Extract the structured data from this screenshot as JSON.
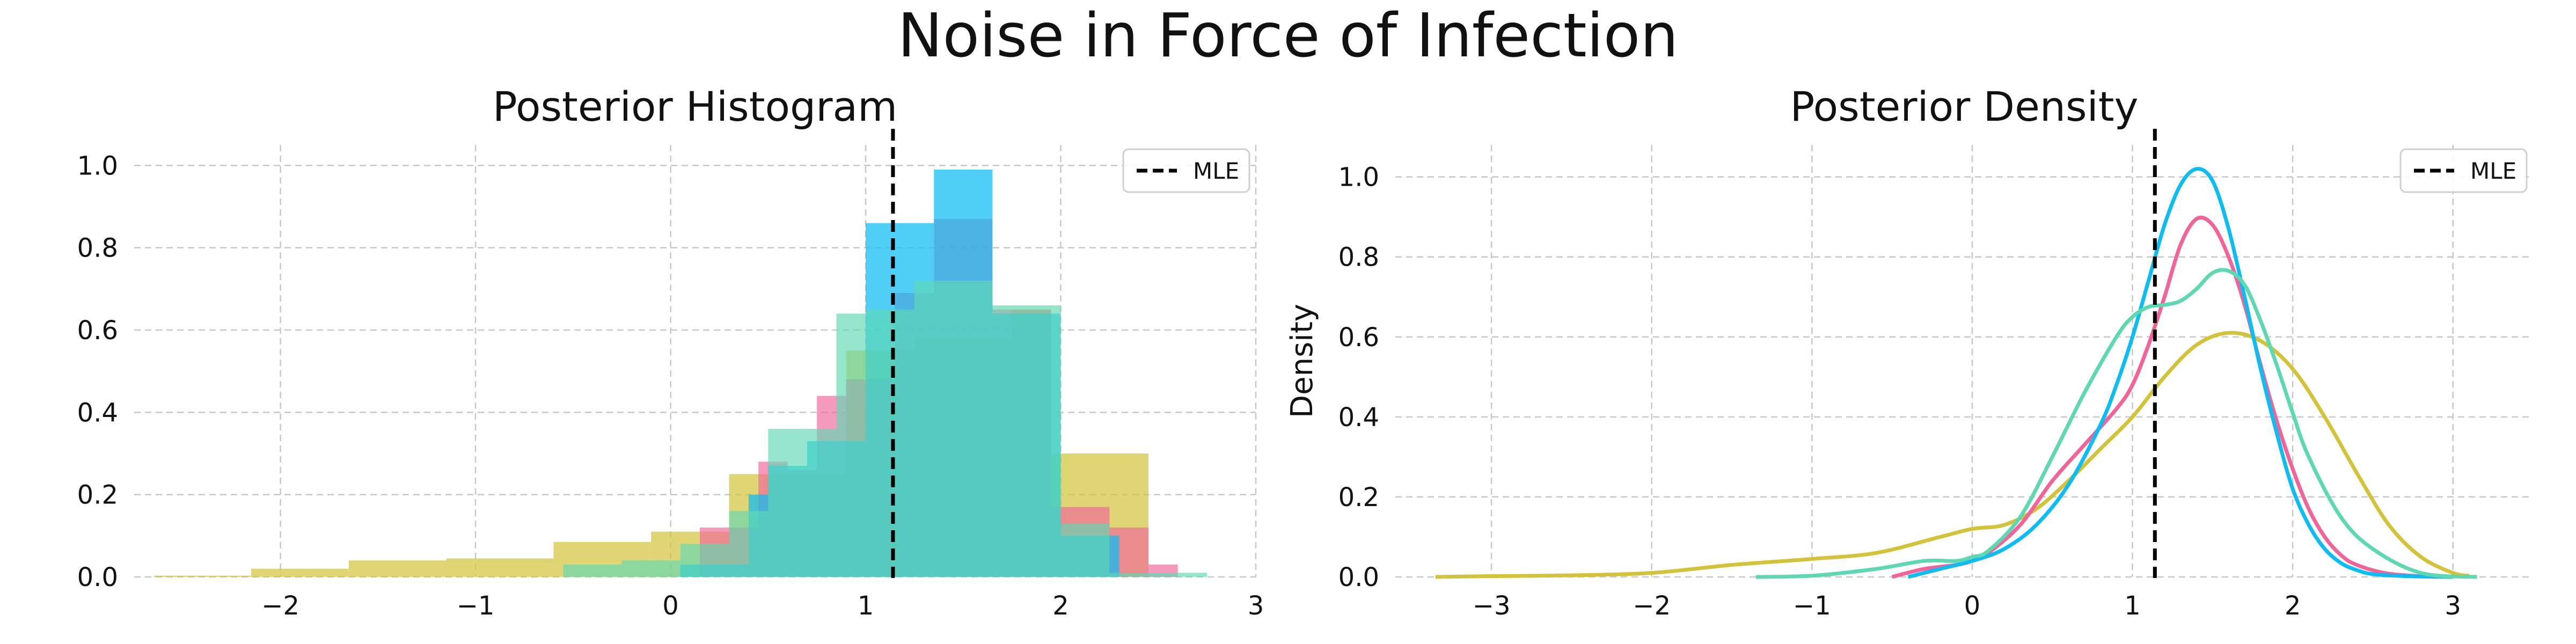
{
  "figure": {
    "title": "Noise in Force of Infection"
  },
  "colors": {
    "blue": "#0cbcf2",
    "pink": "#f0649a",
    "teal": "#5ed8b2",
    "olive": "#d2c33a",
    "grid": "#c8c8c8",
    "mle": "#000000"
  },
  "chart_data": [
    {
      "type": "bar",
      "title": "Posterior Histogram",
      "xlabel": "",
      "ylabel": "",
      "xlim": [
        -2.75,
        3.0
      ],
      "ylim": [
        0,
        1.05
      ],
      "xticks": [
        -2,
        -1,
        0,
        1,
        2,
        3
      ],
      "xtick_labels": [
        "−2",
        "−1",
        "0",
        "1",
        "2",
        "3"
      ],
      "yticks": [
        0.0,
        0.2,
        0.4,
        0.6,
        0.8,
        1.0
      ],
      "ytick_labels": [
        "0.0",
        "0.2",
        "0.4",
        "0.6",
        "0.8",
        "1.0"
      ],
      "grid": true,
      "legend": {
        "entries": [
          "MLE"
        ],
        "placement": "top-right"
      },
      "mle": 1.14,
      "series": [
        {
          "color": "olive",
          "opacity": 0.7,
          "bins": [
            [
              -2.65,
              -2.15,
              0.003
            ],
            [
              -2.15,
              -1.65,
              0.02
            ],
            [
              -1.65,
              -1.15,
              0.04
            ],
            [
              -1.15,
              -0.6,
              0.045
            ],
            [
              -0.6,
              -0.1,
              0.085
            ],
            [
              -0.1,
              0.3,
              0.11
            ],
            [
              0.3,
              0.45,
              0.25
            ],
            [
              0.45,
              0.9,
              0.25
            ],
            [
              0.9,
              1.25,
              0.55
            ],
            [
              1.25,
              1.75,
              0.58
            ],
            [
              1.75,
              1.95,
              0.65
            ],
            [
              1.95,
              2.45,
              0.3
            ]
          ]
        },
        {
          "color": "pink",
          "opacity": 0.65,
          "bins": [
            [
              0.15,
              0.45,
              0.12
            ],
            [
              0.45,
              0.6,
              0.28
            ],
            [
              0.6,
              0.75,
              0.26
            ],
            [
              0.75,
              0.9,
              0.44
            ],
            [
              0.9,
              1.15,
              0.48
            ],
            [
              1.15,
              1.35,
              0.69
            ],
            [
              1.35,
              1.65,
              0.87
            ],
            [
              1.65,
              1.95,
              0.65
            ],
            [
              1.95,
              2.25,
              0.17
            ],
            [
              2.25,
              2.45,
              0.12
            ],
            [
              2.45,
              2.6,
              0.03
            ]
          ]
        },
        {
          "color": "blue",
          "opacity": 0.72,
          "bins": [
            [
              0.05,
              0.4,
              0.03
            ],
            [
              0.4,
              0.5,
              0.2
            ],
            [
              0.5,
              0.7,
              0.27
            ],
            [
              0.7,
              1.0,
              0.33
            ],
            [
              1.0,
              1.35,
              0.86
            ],
            [
              1.35,
              1.65,
              0.99
            ],
            [
              1.65,
              2.0,
              0.64
            ],
            [
              2.0,
              2.3,
              0.1
            ]
          ]
        },
        {
          "color": "teal",
          "opacity": 0.65,
          "bins": [
            [
              -0.55,
              -0.25,
              0.03
            ],
            [
              -0.25,
              0.05,
              0.04
            ],
            [
              0.05,
              0.3,
              0.08
            ],
            [
              0.3,
              0.5,
              0.16
            ],
            [
              0.5,
              0.85,
              0.36
            ],
            [
              0.85,
              1.0,
              0.64
            ],
            [
              1.0,
              1.25,
              0.65
            ],
            [
              1.25,
              1.65,
              0.72
            ],
            [
              1.65,
              2.0,
              0.66
            ],
            [
              2.0,
              2.25,
              0.13
            ],
            [
              2.25,
              2.75,
              0.01
            ]
          ]
        }
      ]
    },
    {
      "type": "line",
      "title": "Posterior Density",
      "xlabel": "",
      "ylabel": "Density",
      "xlim": [
        -3.6,
        3.5
      ],
      "ylim": [
        0,
        1.08
      ],
      "xticks": [
        -3,
        -2,
        -1,
        0,
        1,
        2,
        3
      ],
      "xtick_labels": [
        "−3",
        "−2",
        "−1",
        "0",
        "1",
        "2",
        "3"
      ],
      "yticks": [
        0.0,
        0.2,
        0.4,
        0.6,
        0.8,
        1.0
      ],
      "ytick_labels": [
        "0.0",
        "0.2",
        "0.4",
        "0.6",
        "0.8",
        "1.0"
      ],
      "grid": true,
      "legend": {
        "entries": [
          "MLE"
        ],
        "placement": "top-right"
      },
      "mle": 1.14,
      "series": [
        {
          "color": "olive",
          "x": [
            -3.35,
            -3.0,
            -2.5,
            -2.0,
            -1.5,
            -1.0,
            -0.6,
            -0.2,
            0.0,
            0.2,
            0.4,
            0.6,
            0.8,
            1.0,
            1.2,
            1.4,
            1.6,
            1.8,
            2.0,
            2.2,
            2.4,
            2.6,
            2.8,
            3.0,
            3.1
          ],
          "y": [
            0.0,
            0.002,
            0.004,
            0.01,
            0.03,
            0.045,
            0.06,
            0.1,
            0.12,
            0.13,
            0.17,
            0.24,
            0.32,
            0.4,
            0.5,
            0.58,
            0.61,
            0.59,
            0.52,
            0.4,
            0.26,
            0.13,
            0.05,
            0.01,
            0.003
          ]
        },
        {
          "color": "pink",
          "x": [
            -0.5,
            -0.3,
            -0.1,
            0.0,
            0.1,
            0.3,
            0.5,
            0.7,
            0.9,
            1.0,
            1.1,
            1.2,
            1.3,
            1.4,
            1.5,
            1.6,
            1.7,
            1.8,
            1.9,
            2.0,
            2.1,
            2.2,
            2.3,
            2.4,
            2.6,
            2.9
          ],
          "y": [
            0.0,
            0.02,
            0.03,
            0.04,
            0.06,
            0.13,
            0.24,
            0.33,
            0.42,
            0.48,
            0.58,
            0.7,
            0.83,
            0.895,
            0.88,
            0.8,
            0.68,
            0.53,
            0.39,
            0.27,
            0.17,
            0.1,
            0.055,
            0.03,
            0.008,
            0.0
          ]
        },
        {
          "color": "blue",
          "x": [
            -0.4,
            -0.2,
            0.0,
            0.2,
            0.4,
            0.6,
            0.8,
            0.9,
            1.0,
            1.1,
            1.2,
            1.3,
            1.4,
            1.5,
            1.6,
            1.7,
            1.8,
            1.9,
            2.0,
            2.1,
            2.2,
            2.3,
            2.4,
            2.5,
            2.7,
            3.0
          ],
          "y": [
            0.0,
            0.02,
            0.04,
            0.07,
            0.13,
            0.23,
            0.38,
            0.48,
            0.6,
            0.74,
            0.88,
            0.98,
            1.02,
            0.99,
            0.87,
            0.7,
            0.52,
            0.36,
            0.22,
            0.13,
            0.07,
            0.035,
            0.017,
            0.007,
            0.002,
            0.0
          ]
        },
        {
          "color": "teal",
          "x": [
            -1.35,
            -1.0,
            -0.6,
            -0.3,
            -0.1,
            0.0,
            0.1,
            0.3,
            0.5,
            0.7,
            0.9,
            1.0,
            1.1,
            1.2,
            1.3,
            1.4,
            1.5,
            1.6,
            1.7,
            1.8,
            1.9,
            2.0,
            2.1,
            2.3,
            2.5,
            2.8,
            3.15
          ],
          "y": [
            0.0,
            0.003,
            0.02,
            0.04,
            0.04,
            0.05,
            0.065,
            0.15,
            0.3,
            0.46,
            0.6,
            0.65,
            0.675,
            0.68,
            0.69,
            0.72,
            0.76,
            0.765,
            0.73,
            0.64,
            0.53,
            0.41,
            0.3,
            0.15,
            0.07,
            0.01,
            0.0
          ]
        }
      ]
    }
  ]
}
